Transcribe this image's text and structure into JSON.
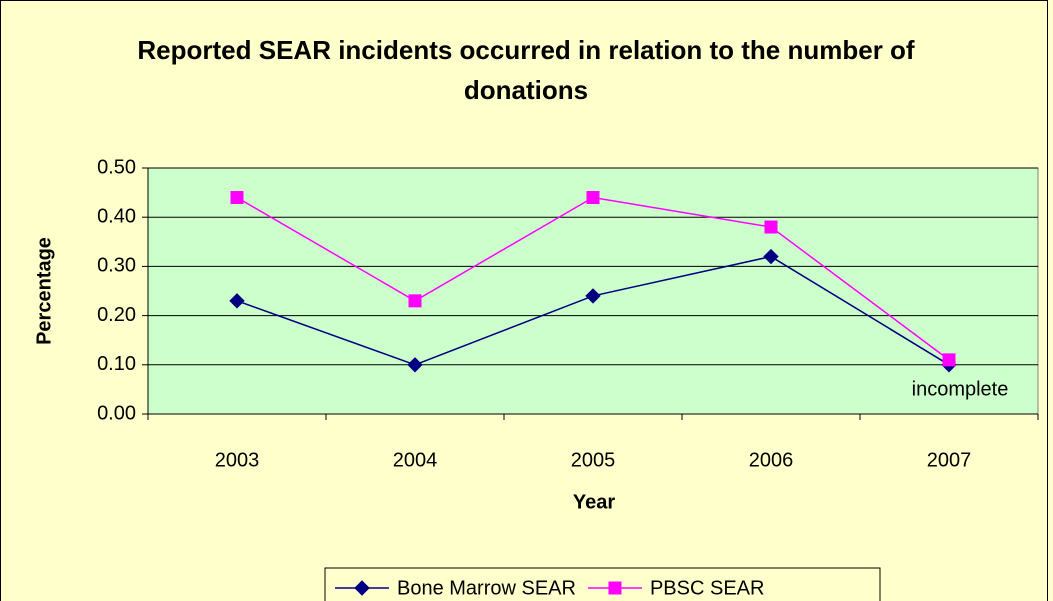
{
  "chart_data": {
    "type": "line",
    "title": "Reported SEAR incidents occurred in relation to the number of donations",
    "x_label": "Year",
    "y_label": "Percentage",
    "categories": [
      "2003",
      "2004",
      "2005",
      "2006",
      "2007"
    ],
    "series": [
      {
        "name": "Bone Marrow SEAR",
        "color": "#000080",
        "marker": "diamond",
        "values": [
          0.23,
          0.1,
          0.24,
          0.32,
          0.1
        ]
      },
      {
        "name": "PBSC SEAR",
        "color": "#ff00ff",
        "marker": "square",
        "values": [
          0.44,
          0.23,
          0.44,
          0.38,
          0.11
        ]
      }
    ],
    "ylim": [
      0,
      0.5
    ],
    "yticks": [
      {
        "value": 0,
        "label": "0.00"
      },
      {
        "value": 0.1,
        "label": "0.10"
      },
      {
        "value": 0.2,
        "label": "0.20"
      },
      {
        "value": 0.3,
        "label": "0.30"
      },
      {
        "value": 0.4,
        "label": "0.40"
      },
      {
        "value": 0.5,
        "label": "0.50"
      }
    ],
    "grid": true,
    "legend": "bottom",
    "annotation": "incomplete"
  }
}
